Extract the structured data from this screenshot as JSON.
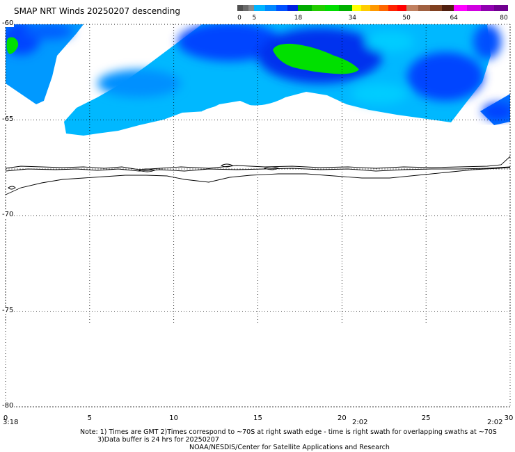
{
  "title": "SMAP NRT Winds  20250207 descending",
  "colorbar": {
    "labels": [
      "0",
      "5",
      "18",
      "34",
      "50",
      "64",
      "80"
    ],
    "stops": [
      0,
      5,
      18,
      34,
      50,
      64,
      80
    ],
    "segments": [
      {
        "from": 0,
        "to": 5,
        "colors": [
          "#505050",
          "#6a6a6a",
          "#8a8a8a"
        ]
      },
      {
        "from": 5,
        "to": 18,
        "colors": [
          "#00b4ff",
          "#0088ff",
          "#0050ff",
          "#0020e0"
        ]
      },
      {
        "from": 18,
        "to": 34,
        "colors": [
          "#00aa00",
          "#22cc00",
          "#00dd00",
          "#00b000"
        ]
      },
      {
        "from": 34,
        "to": 50,
        "colors": [
          "#ffff00",
          "#ffcc00",
          "#ff9900",
          "#ff6600",
          "#ff2200",
          "#ff0000"
        ]
      },
      {
        "from": 50,
        "to": 64,
        "colors": [
          "#c08060",
          "#a06040",
          "#804020",
          "#502010"
        ]
      },
      {
        "from": 64,
        "to": 80,
        "colors": [
          "#ff00ff",
          "#d000e0",
          "#9000b0",
          "#700090"
        ]
      }
    ]
  },
  "map": {
    "lat_labels": [
      "-60",
      "-65",
      "-70",
      "-75",
      "-80"
    ],
    "lat_values": [
      -60,
      -65,
      -70,
      -75,
      -80
    ],
    "lon_labels": [
      "0",
      "5",
      "10",
      "15",
      "20",
      "25",
      "30"
    ],
    "lon_values": [
      0,
      5,
      10,
      15,
      20,
      25,
      30
    ],
    "lon_range": [
      0,
      30
    ],
    "lat_range": [
      -60,
      -80
    ],
    "times": [
      "3:18",
      "2:02",
      "2:02"
    ],
    "wind_colors": [
      "#00ccff",
      "#0088ff",
      "#0044ff",
      "#00e000"
    ]
  },
  "notes": {
    "line1": "Note: 1) Times are GMT 2)Times correspond to ~70S at right swath edge - time is right swath for overlapping swaths at ~70S",
    "line2": "3)Data buffer is 24 hrs for 20250207",
    "line3": "NOAA/NESDIS/Center for Satellite Applications and Research"
  }
}
